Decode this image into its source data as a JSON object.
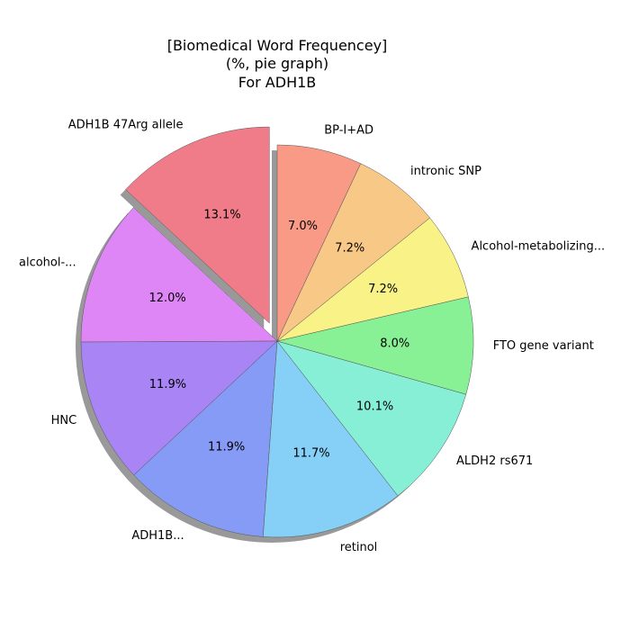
{
  "chart_data": {
    "type": "pie",
    "title": "[Biomedical Word Frequencey]",
    "subtitle": "(%, pie graph)",
    "subtitle2": "For ADH1B",
    "start_angle_deg": 90,
    "direction": "counterclockwise",
    "shadow": true,
    "slices": [
      {
        "label": "ADH1B 47Arg allele",
        "value": 13.1,
        "pct_text": "13.1%",
        "color": "#f07c8a",
        "explode": true
      },
      {
        "label": "alcohol-...",
        "value": 12.0,
        "pct_text": "12.0%",
        "color": "#df86f6",
        "explode": false
      },
      {
        "label": "HNC",
        "value": 11.9,
        "pct_text": "11.9%",
        "color": "#a884f4",
        "explode": false
      },
      {
        "label": "ADH1B...",
        "value": 11.9,
        "pct_text": "11.9%",
        "color": "#869bf5",
        "explode": false
      },
      {
        "label": "retinol",
        "value": 11.7,
        "pct_text": "11.7%",
        "color": "#86cff7",
        "explode": false
      },
      {
        "label": "ALDH2 rs671",
        "value": 10.1,
        "pct_text": "10.1%",
        "color": "#86efd6",
        "explode": false
      },
      {
        "label": "FTO gene variant",
        "value": 8.0,
        "pct_text": "8.0%",
        "color": "#88f095",
        "explode": false
      },
      {
        "label": "Alcohol-metabolizing...",
        "value": 7.2,
        "pct_text": "7.2%",
        "color": "#f8f287",
        "explode": false
      },
      {
        "label": "intronic SNP",
        "value": 7.2,
        "pct_text": "7.2%",
        "color": "#f8c886",
        "explode": false
      },
      {
        "label": "BP-I+AD",
        "value": 7.0,
        "pct_text": "7.0%",
        "color": "#f89a86",
        "explode": false
      }
    ]
  }
}
